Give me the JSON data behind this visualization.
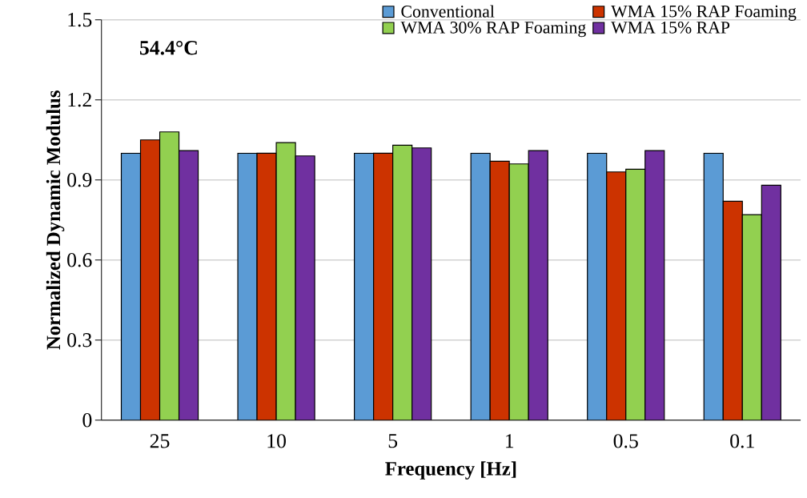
{
  "chart_data": {
    "type": "bar",
    "xlabel": "Frequency [Hz]",
    "ylabel": "Normalized Dynamic Modulus",
    "categories": [
      "25",
      "10",
      "5",
      "1",
      "0.5",
      "0.1"
    ],
    "series": [
      {
        "name": "Conventional",
        "color": "#5b9bd5",
        "values": [
          1.0,
          1.0,
          1.0,
          1.0,
          1.0,
          1.0
        ]
      },
      {
        "name": "WMA 15% RAP Foaming",
        "color": "#cc3300",
        "values": [
          1.05,
          1.0,
          1.0,
          0.97,
          0.93,
          0.82
        ]
      },
      {
        "name": "WMA 30% RAP Foaming",
        "color": "#92d050",
        "values": [
          1.08,
          1.04,
          1.03,
          0.96,
          0.94,
          0.77
        ]
      },
      {
        "name": "WMA 15% RAP",
        "color": "#7030a0",
        "values": [
          1.01,
          0.99,
          1.02,
          1.01,
          1.01,
          0.88
        ]
      }
    ],
    "ylim": [
      0,
      1.5
    ],
    "yticks": [
      0,
      0.3,
      0.6,
      0.9,
      1.2,
      1.5
    ],
    "grid": "y",
    "legend": "top right",
    "annotations": [
      "54.4°C"
    ]
  }
}
